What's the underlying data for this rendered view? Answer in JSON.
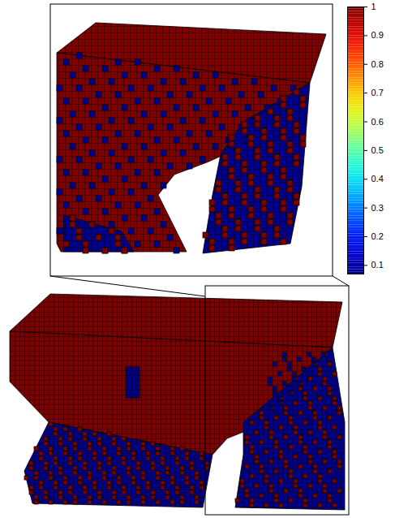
{
  "chart_data": {
    "type": "heatmap",
    "colorbar": {
      "range": [
        0.07,
        1
      ],
      "ticks": [
        0.1,
        0.2,
        0.3,
        0.4,
        0.5,
        0.6,
        0.7,
        0.8,
        0.9,
        1
      ]
    }
  }
}
